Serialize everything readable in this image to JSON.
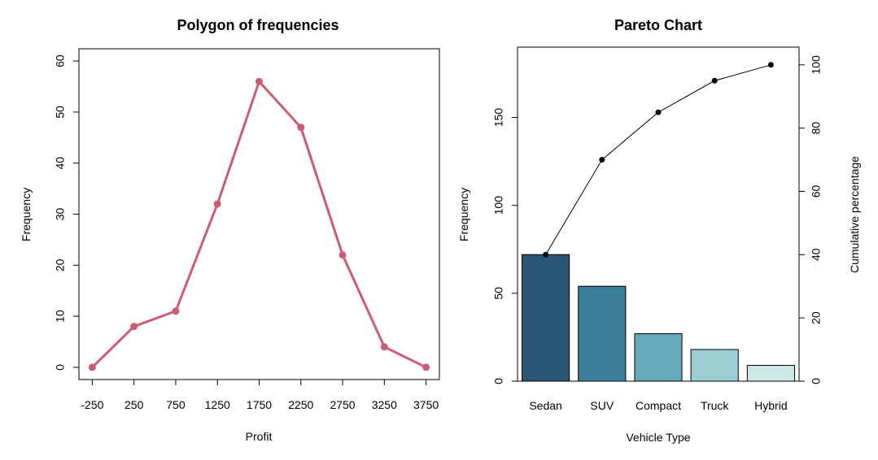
{
  "chart_data": [
    {
      "type": "line",
      "title": "Polygon of frequencies",
      "xlabel": "Profit",
      "ylabel": "Frequency",
      "x": [
        -250,
        250,
        750,
        1250,
        1750,
        2250,
        2750,
        3250,
        3750
      ],
      "x_tick_labels": [
        "-250",
        "250",
        "750",
        "1250",
        "1750",
        "2250",
        "2750",
        "3250",
        "3750"
      ],
      "values": [
        0,
        8,
        11,
        32,
        56,
        47,
        22,
        4,
        0
      ],
      "ylim": [
        -2.4,
        62.4
      ],
      "y_ticks": [
        0,
        10,
        20,
        30,
        40,
        50,
        60
      ],
      "y_tick_labels": [
        "0",
        "10",
        "20",
        "30",
        "40",
        "50",
        "60"
      ],
      "color": "#cd5c70",
      "grid": false
    },
    {
      "type": "bar",
      "title": "Pareto Chart",
      "xlabel": "Vehicle Type",
      "ylabel": "Frequency",
      "y2label": "Cumulative percentage",
      "categories": [
        "Sedan",
        "SUV",
        "Compact",
        "Truck",
        "Hybrid"
      ],
      "values": [
        72,
        54,
        27,
        18,
        9
      ],
      "bar_colors": [
        "#2b5574",
        "#3c7f9b",
        "#66a9b8",
        "#9bcfd3",
        "#cde9e6"
      ],
      "ylim": [
        0,
        190
      ],
      "y_ticks": [
        0,
        50,
        100,
        150
      ],
      "y_tick_labels": [
        "0",
        "50",
        "100",
        "150"
      ],
      "cumulative_percent": [
        40,
        70,
        85,
        95,
        100
      ],
      "y2lim": [
        0,
        105.6
      ],
      "y2_ticks": [
        0,
        20,
        40,
        60,
        80,
        100
      ],
      "y2_tick_labels": [
        "0",
        "20",
        "40",
        "60",
        "80",
        "100"
      ],
      "grid": false
    }
  ]
}
